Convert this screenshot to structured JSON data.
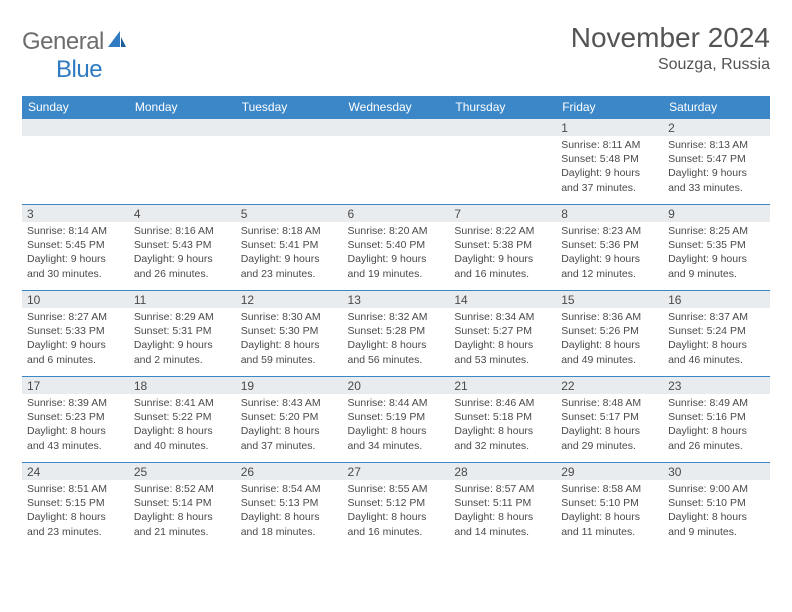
{
  "logo": {
    "part1": "General",
    "part2": "Blue"
  },
  "title": "November 2024",
  "location": "Souzga, Russia",
  "colors": {
    "header_bg": "#3b87c8",
    "header_fg": "#ffffff",
    "daybar_bg": "#e9ecef",
    "border": "#3b87c8",
    "text": "#4a4a4a",
    "logo_gray": "#6d6d6d",
    "logo_blue": "#2f7ac0"
  },
  "day_headers": [
    "Sunday",
    "Monday",
    "Tuesday",
    "Wednesday",
    "Thursday",
    "Friday",
    "Saturday"
  ],
  "weeks": [
    [
      {
        "empty": true
      },
      {
        "empty": true
      },
      {
        "empty": true
      },
      {
        "empty": true
      },
      {
        "empty": true
      },
      {
        "n": "1",
        "sunrise": "Sunrise: 8:11 AM",
        "sunset": "Sunset: 5:48 PM",
        "day1": "Daylight: 9 hours",
        "day2": "and 37 minutes."
      },
      {
        "n": "2",
        "sunrise": "Sunrise: 8:13 AM",
        "sunset": "Sunset: 5:47 PM",
        "day1": "Daylight: 9 hours",
        "day2": "and 33 minutes."
      }
    ],
    [
      {
        "n": "3",
        "sunrise": "Sunrise: 8:14 AM",
        "sunset": "Sunset: 5:45 PM",
        "day1": "Daylight: 9 hours",
        "day2": "and 30 minutes."
      },
      {
        "n": "4",
        "sunrise": "Sunrise: 8:16 AM",
        "sunset": "Sunset: 5:43 PM",
        "day1": "Daylight: 9 hours",
        "day2": "and 26 minutes."
      },
      {
        "n": "5",
        "sunrise": "Sunrise: 8:18 AM",
        "sunset": "Sunset: 5:41 PM",
        "day1": "Daylight: 9 hours",
        "day2": "and 23 minutes."
      },
      {
        "n": "6",
        "sunrise": "Sunrise: 8:20 AM",
        "sunset": "Sunset: 5:40 PM",
        "day1": "Daylight: 9 hours",
        "day2": "and 19 minutes."
      },
      {
        "n": "7",
        "sunrise": "Sunrise: 8:22 AM",
        "sunset": "Sunset: 5:38 PM",
        "day1": "Daylight: 9 hours",
        "day2": "and 16 minutes."
      },
      {
        "n": "8",
        "sunrise": "Sunrise: 8:23 AM",
        "sunset": "Sunset: 5:36 PM",
        "day1": "Daylight: 9 hours",
        "day2": "and 12 minutes."
      },
      {
        "n": "9",
        "sunrise": "Sunrise: 8:25 AM",
        "sunset": "Sunset: 5:35 PM",
        "day1": "Daylight: 9 hours",
        "day2": "and 9 minutes."
      }
    ],
    [
      {
        "n": "10",
        "sunrise": "Sunrise: 8:27 AM",
        "sunset": "Sunset: 5:33 PM",
        "day1": "Daylight: 9 hours",
        "day2": "and 6 minutes."
      },
      {
        "n": "11",
        "sunrise": "Sunrise: 8:29 AM",
        "sunset": "Sunset: 5:31 PM",
        "day1": "Daylight: 9 hours",
        "day2": "and 2 minutes."
      },
      {
        "n": "12",
        "sunrise": "Sunrise: 8:30 AM",
        "sunset": "Sunset: 5:30 PM",
        "day1": "Daylight: 8 hours",
        "day2": "and 59 minutes."
      },
      {
        "n": "13",
        "sunrise": "Sunrise: 8:32 AM",
        "sunset": "Sunset: 5:28 PM",
        "day1": "Daylight: 8 hours",
        "day2": "and 56 minutes."
      },
      {
        "n": "14",
        "sunrise": "Sunrise: 8:34 AM",
        "sunset": "Sunset: 5:27 PM",
        "day1": "Daylight: 8 hours",
        "day2": "and 53 minutes."
      },
      {
        "n": "15",
        "sunrise": "Sunrise: 8:36 AM",
        "sunset": "Sunset: 5:26 PM",
        "day1": "Daylight: 8 hours",
        "day2": "and 49 minutes."
      },
      {
        "n": "16",
        "sunrise": "Sunrise: 8:37 AM",
        "sunset": "Sunset: 5:24 PM",
        "day1": "Daylight: 8 hours",
        "day2": "and 46 minutes."
      }
    ],
    [
      {
        "n": "17",
        "sunrise": "Sunrise: 8:39 AM",
        "sunset": "Sunset: 5:23 PM",
        "day1": "Daylight: 8 hours",
        "day2": "and 43 minutes."
      },
      {
        "n": "18",
        "sunrise": "Sunrise: 8:41 AM",
        "sunset": "Sunset: 5:22 PM",
        "day1": "Daylight: 8 hours",
        "day2": "and 40 minutes."
      },
      {
        "n": "19",
        "sunrise": "Sunrise: 8:43 AM",
        "sunset": "Sunset: 5:20 PM",
        "day1": "Daylight: 8 hours",
        "day2": "and 37 minutes."
      },
      {
        "n": "20",
        "sunrise": "Sunrise: 8:44 AM",
        "sunset": "Sunset: 5:19 PM",
        "day1": "Daylight: 8 hours",
        "day2": "and 34 minutes."
      },
      {
        "n": "21",
        "sunrise": "Sunrise: 8:46 AM",
        "sunset": "Sunset: 5:18 PM",
        "day1": "Daylight: 8 hours",
        "day2": "and 32 minutes."
      },
      {
        "n": "22",
        "sunrise": "Sunrise: 8:48 AM",
        "sunset": "Sunset: 5:17 PM",
        "day1": "Daylight: 8 hours",
        "day2": "and 29 minutes."
      },
      {
        "n": "23",
        "sunrise": "Sunrise: 8:49 AM",
        "sunset": "Sunset: 5:16 PM",
        "day1": "Daylight: 8 hours",
        "day2": "and 26 minutes."
      }
    ],
    [
      {
        "n": "24",
        "sunrise": "Sunrise: 8:51 AM",
        "sunset": "Sunset: 5:15 PM",
        "day1": "Daylight: 8 hours",
        "day2": "and 23 minutes."
      },
      {
        "n": "25",
        "sunrise": "Sunrise: 8:52 AM",
        "sunset": "Sunset: 5:14 PM",
        "day1": "Daylight: 8 hours",
        "day2": "and 21 minutes."
      },
      {
        "n": "26",
        "sunrise": "Sunrise: 8:54 AM",
        "sunset": "Sunset: 5:13 PM",
        "day1": "Daylight: 8 hours",
        "day2": "and 18 minutes."
      },
      {
        "n": "27",
        "sunrise": "Sunrise: 8:55 AM",
        "sunset": "Sunset: 5:12 PM",
        "day1": "Daylight: 8 hours",
        "day2": "and 16 minutes."
      },
      {
        "n": "28",
        "sunrise": "Sunrise: 8:57 AM",
        "sunset": "Sunset: 5:11 PM",
        "day1": "Daylight: 8 hours",
        "day2": "and 14 minutes."
      },
      {
        "n": "29",
        "sunrise": "Sunrise: 8:58 AM",
        "sunset": "Sunset: 5:10 PM",
        "day1": "Daylight: 8 hours",
        "day2": "and 11 minutes."
      },
      {
        "n": "30",
        "sunrise": "Sunrise: 9:00 AM",
        "sunset": "Sunset: 5:10 PM",
        "day1": "Daylight: 8 hours",
        "day2": "and 9 minutes."
      }
    ]
  ]
}
